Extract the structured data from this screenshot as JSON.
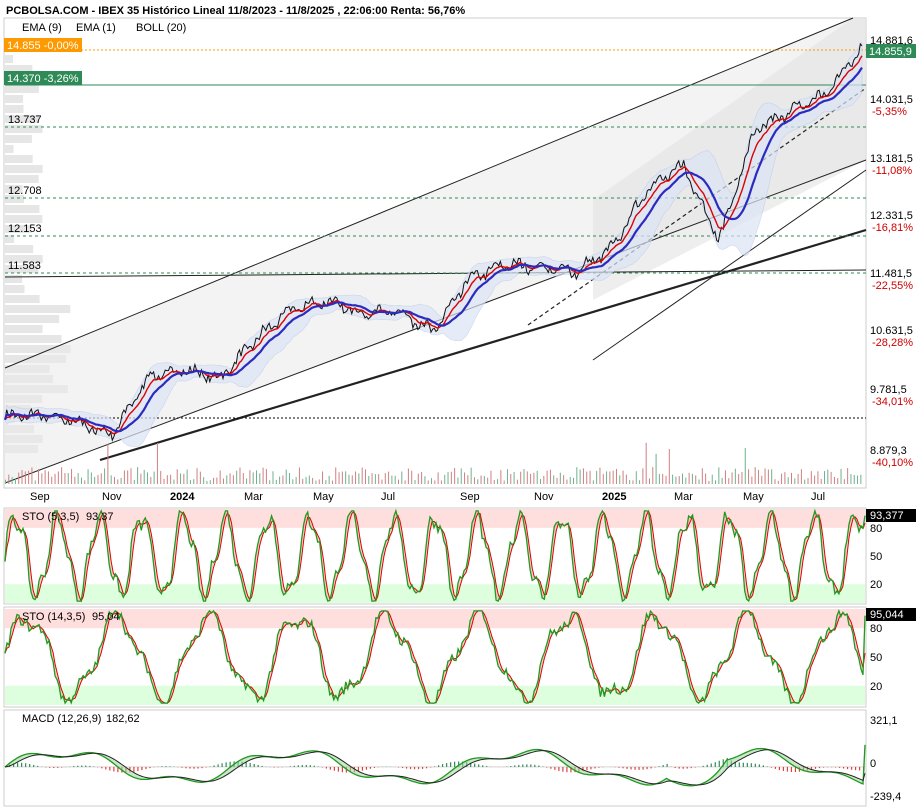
{
  "header": {
    "title": "PCBOLSA.COM - IBEX 35 Histórico Lineal 11/8/2023 - 11/8/2025 , 22:06:00 Renta: 56,76%",
    "legend": [
      {
        "label": "EMA (9)",
        "color": "#e00000"
      },
      {
        "label": "EMA (1)",
        "color": "#000000"
      },
      {
        "label": "BOLL (20)",
        "color": "#2b2bbf"
      }
    ]
  },
  "colors": {
    "price": "#111111",
    "ema9": "#e00000",
    "boll_mid": "#2b2bbf",
    "boll_band": "#dbe4f5",
    "channel_fill": "#e9e9e9",
    "stoch_k": "#1f9a1f",
    "stoch_d": "#e00000",
    "overbought": "#ffdede",
    "oversold": "#ddffdd",
    "badge_orange": "#ff9900",
    "badge_green": "#2e8b57",
    "badge_black": "#000000"
  },
  "price_badges": {
    "current": "14.855 -0,00%",
    "reference": "14.370 -3,26%",
    "right_current": "14.855,9"
  },
  "support_levels": [
    "13.737",
    "12.708",
    "12.153",
    "11.583"
  ],
  "x_axis_labels": [
    "Sep",
    "Nov",
    "2024",
    "Mar",
    "May",
    "Jul",
    "Sep",
    "Nov",
    "2025",
    "Mar",
    "May",
    "Jul"
  ],
  "chart_data": [
    {
      "type": "line",
      "title": "IBEX 35 Histórico Lineal",
      "y_ticks": [
        {
          "value": "14.881,6",
          "pct": ""
        },
        {
          "value": "14.031,5",
          "pct": "-5,35%"
        },
        {
          "value": "13.181,5",
          "pct": "-11,08%"
        },
        {
          "value": "12.331,5",
          "pct": "-16,81%"
        },
        {
          "value": "11.481,5",
          "pct": "-22,55%"
        },
        {
          "value": "10.631,5",
          "pct": "-28,28%"
        },
        {
          "value": "9.781,5",
          "pct": "-34,01%"
        },
        {
          "value": "8.879,3",
          "pct": "-40,10%"
        }
      ],
      "ylim": [
        8879.3,
        14881.6
      ],
      "x": [
        "2023-08",
        "2023-09",
        "2023-10",
        "2023-11",
        "2023-12",
        "2024-01",
        "2024-02",
        "2024-03",
        "2024-04",
        "2024-05",
        "2024-06",
        "2024-07",
        "2024-08",
        "2024-09",
        "2024-10",
        "2024-11",
        "2024-12",
        "2025-01",
        "2025-02",
        "2025-03",
        "2025-04",
        "2025-05",
        "2025-06",
        "2025-07",
        "2025-08"
      ],
      "series": [
        {
          "values": [
            9400,
            9420,
            9330,
            9120,
            9980,
            10090,
            9960,
            10520,
            10980,
            11100,
            10920,
            10960,
            10650,
            11430,
            11640,
            11600,
            11530,
            11880,
            12760,
            13100,
            12000,
            13600,
            13900,
            14150,
            14855
          ]
        }
      ]
    },
    {
      "type": "line",
      "title": "STO (5,3,5)",
      "current": "93,37",
      "badge": "93,377",
      "y_ticks": [
        "80",
        "50",
        "20"
      ],
      "ylim": [
        0,
        100
      ]
    },
    {
      "type": "line",
      "title": "STO (14,3,5)",
      "current": "95,04",
      "badge": "95,044",
      "y_ticks": [
        "80",
        "50",
        "20"
      ],
      "ylim": [
        0,
        100
      ]
    },
    {
      "type": "line",
      "title": "MACD (12,26,9)",
      "current": "182,62",
      "y_ticks": [
        "321,1",
        "0",
        "-239,4"
      ],
      "ylim": [
        -239.4,
        321.1
      ]
    }
  ]
}
